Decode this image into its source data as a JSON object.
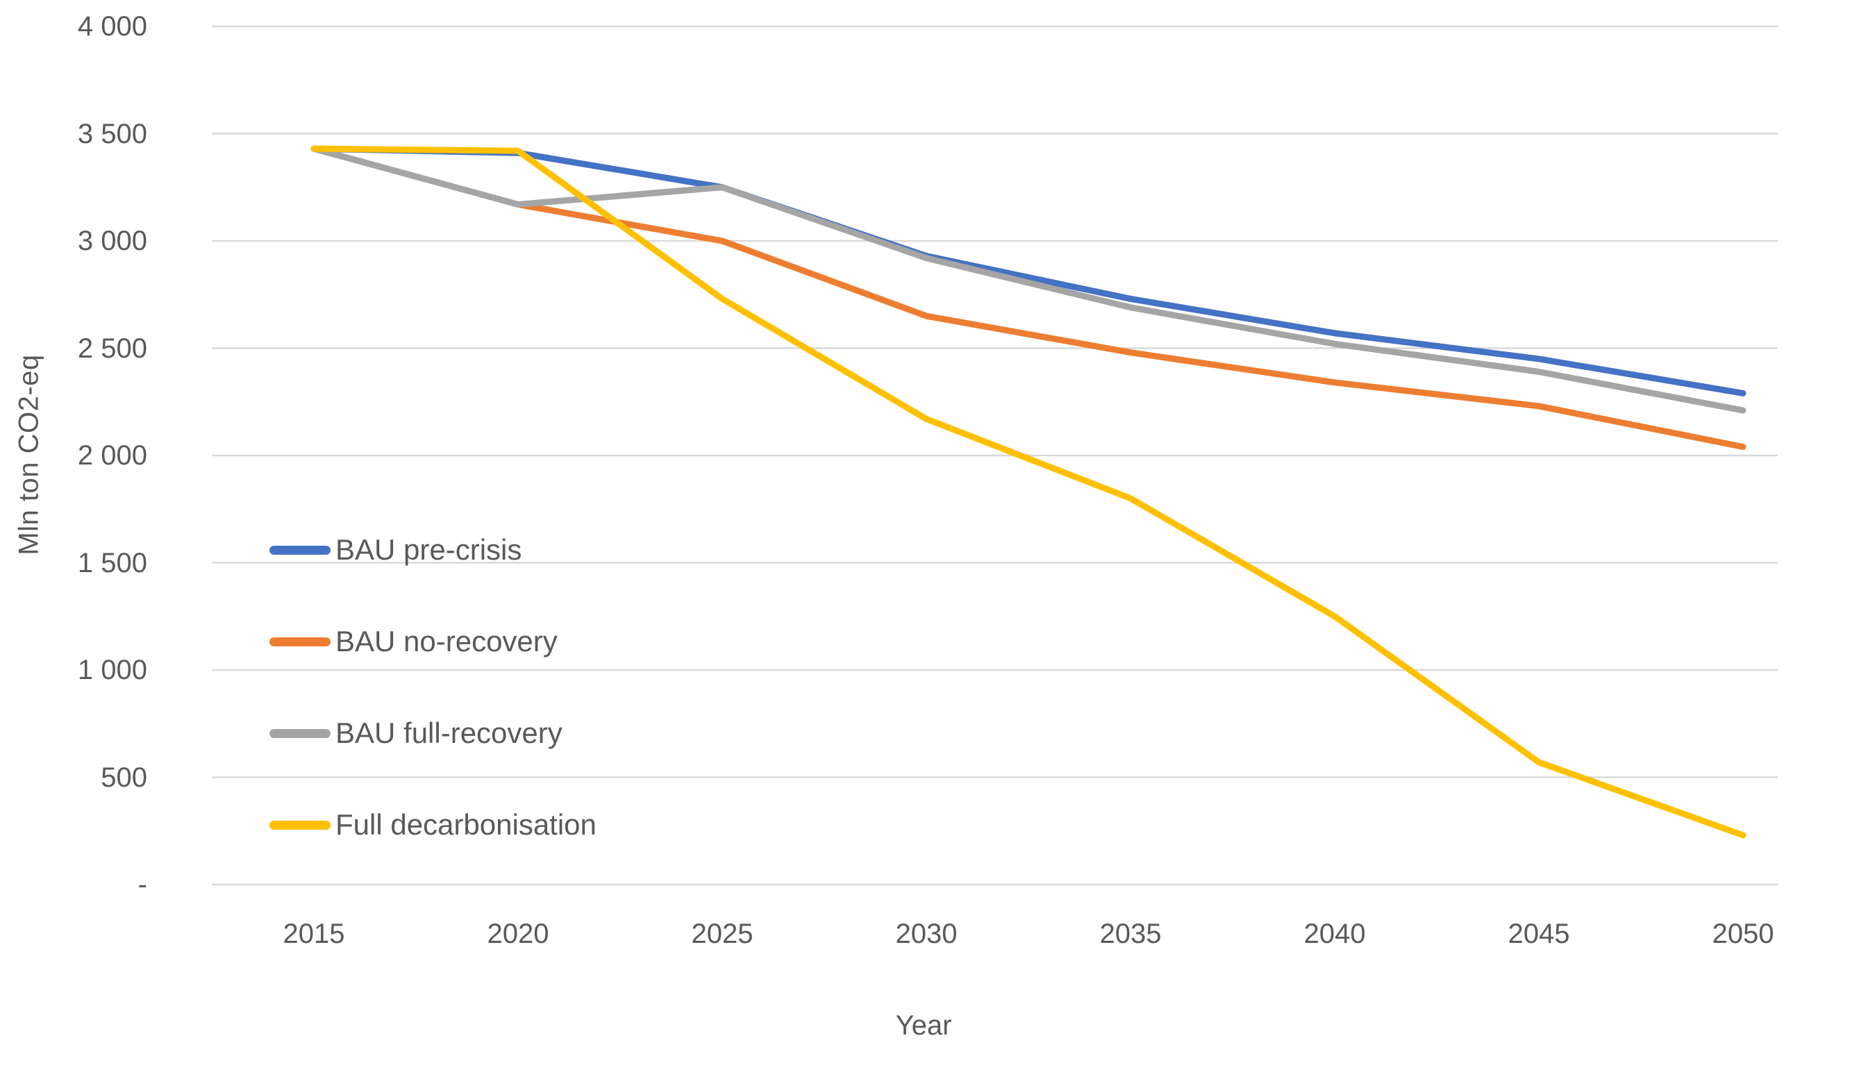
{
  "colors": {
    "background": "#ffffff",
    "gridline": "#d9d9d9",
    "text": "#595959"
  },
  "chart_data": {
    "type": "line",
    "title": "",
    "xlabel": "Year",
    "ylabel": "Mln ton CO2-eq",
    "x": [
      2015,
      2020,
      2025,
      2030,
      2035,
      2040,
      2045,
      2050
    ],
    "xtick_labels": [
      "2015",
      "2020",
      "2025",
      "2030",
      "2035",
      "2040",
      "2045",
      "2050"
    ],
    "ylim": [
      0,
      4000
    ],
    "ytick_values": [
      4000,
      3500,
      3000,
      2500,
      2000,
      1500,
      1000,
      500,
      0
    ],
    "ytick_labels": [
      "4 000",
      "3 500",
      "3 000",
      "2 500",
      "2 000",
      "1 500",
      "1 000",
      "500",
      "-"
    ],
    "grid": "horizontal",
    "legend_position": "inside-left-middle",
    "series": [
      {
        "name": "BAU pre-crisis",
        "color": "#4472C4",
        "values": [
          3430,
          3410,
          3250,
          2930,
          2730,
          2570,
          2450,
          2290
        ]
      },
      {
        "name": "BAU no-recovery",
        "color": "#ED7D31",
        "values": [
          3430,
          3170,
          3000,
          2650,
          2480,
          2340,
          2230,
          2040
        ]
      },
      {
        "name": "BAU full-recovery",
        "color": "#A5A5A5",
        "values": [
          3430,
          3170,
          3250,
          2920,
          2690,
          2520,
          2390,
          2210
        ]
      },
      {
        "name": "Full decarbonisation",
        "color": "#FFC000",
        "values": [
          3430,
          3420,
          2730,
          2170,
          1800,
          1250,
          570,
          230
        ]
      }
    ]
  }
}
